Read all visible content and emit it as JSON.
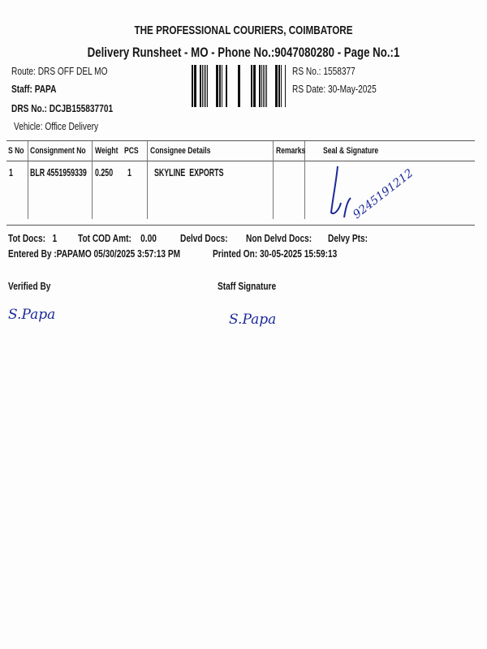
{
  "header": {
    "company": "THE PROFESSIONAL COURIERS, COIMBATORE",
    "subtitle": "Delivery Runsheet - MO - Phone No.:9047080280 - Page No.:1"
  },
  "info": {
    "route": "Route: DRS OFF DEL MO",
    "staff": "Staff: PAPA",
    "drs_no": "DRS No.: DCJB155837701",
    "vehicle": "Vehicle: Office Delivery",
    "rs_no": "RS No.: 1558377",
    "rs_date": "RS Date: 30-May-2025"
  },
  "table": {
    "columns": [
      "S No",
      "Consignment No",
      "Weight",
      "PCS",
      "Consignee Details",
      "Remarks",
      "Seal & Signature"
    ],
    "rows": [
      {
        "sno": "1",
        "consignment": "BLR 4551959339",
        "weight": "0.250",
        "pcs": "1",
        "consignee": "SKYLINE  EXPORTS",
        "remarks": "",
        "signature_note": "9245191212"
      }
    ]
  },
  "totals": {
    "tot_docs": "Tot Docs:   1",
    "tot_cod": "Tot COD Amt:    0.00",
    "delvd_docs": "Delvd Docs:",
    "non_delvd_docs": "Non Delvd Docs:",
    "delvy_pts": "Delvy Pts:",
    "entered_by": "Entered By :PAPAMO 05/30/2025 3:57:13 PM",
    "printed_on": "Printed On: 30-05-2025 15:59:13"
  },
  "footer": {
    "verified_by": "Verified By",
    "staff_signature": "Staff Signature",
    "verified_sign": "S.Papa",
    "staff_sign": "S.Papa"
  },
  "colors": {
    "ink": "#161616",
    "pen": "#1d2a9a"
  }
}
